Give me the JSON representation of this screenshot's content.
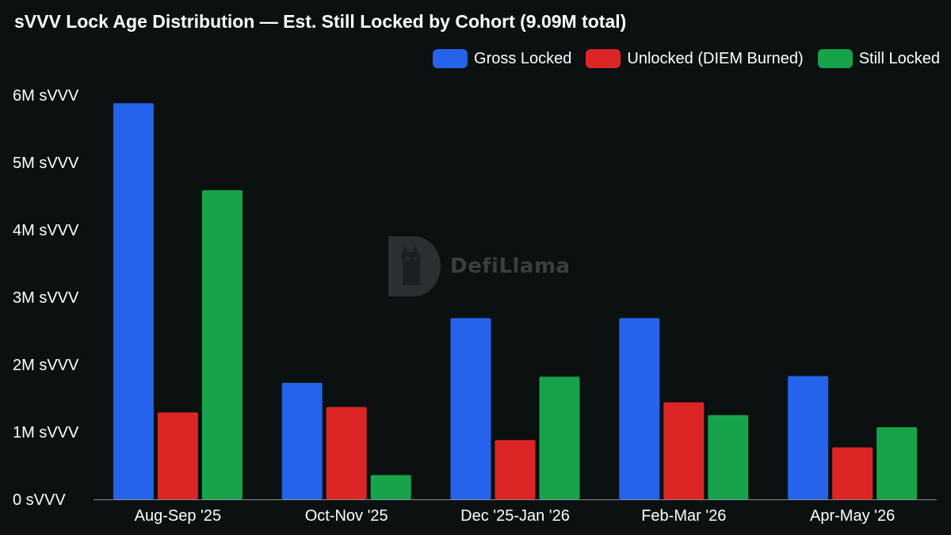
{
  "chart_data": {
    "type": "bar",
    "title": "sVVV Lock Age Distribution — Est. Still Locked by Cohort (9.09M total)",
    "categories": [
      "Aug-Sep '25",
      "Oct-Nov '25",
      "Dec '25-Jan '26",
      "Feb-Mar '26",
      "Apr-May '26"
    ],
    "series": [
      {
        "name": "Gross Locked",
        "color": "#2563eb",
        "values": [
          5.88,
          1.73,
          2.69,
          2.69,
          1.83
        ]
      },
      {
        "name": "Unlocked (DIEM Burned)",
        "color": "#dc2626",
        "values": [
          1.29,
          1.37,
          0.88,
          1.44,
          0.77
        ]
      },
      {
        "name": "Still Locked",
        "color": "#16a34a",
        "values": [
          4.59,
          0.36,
          1.82,
          1.25,
          1.07
        ]
      }
    ],
    "ylim": [
      0,
      6
    ],
    "yticks": [
      0,
      1,
      2,
      3,
      4,
      5,
      6
    ],
    "ytick_labels": [
      "0 sVVV",
      "1M sVVV",
      "2M sVVV",
      "3M sVVV",
      "4M sVVV",
      "5M sVVV",
      "6M sVVV"
    ],
    "y_unit": "M sVVV",
    "legend": "top-right",
    "grid": false
  },
  "watermark": {
    "text": "DefiLlama",
    "icon": "llama-logo-icon"
  }
}
